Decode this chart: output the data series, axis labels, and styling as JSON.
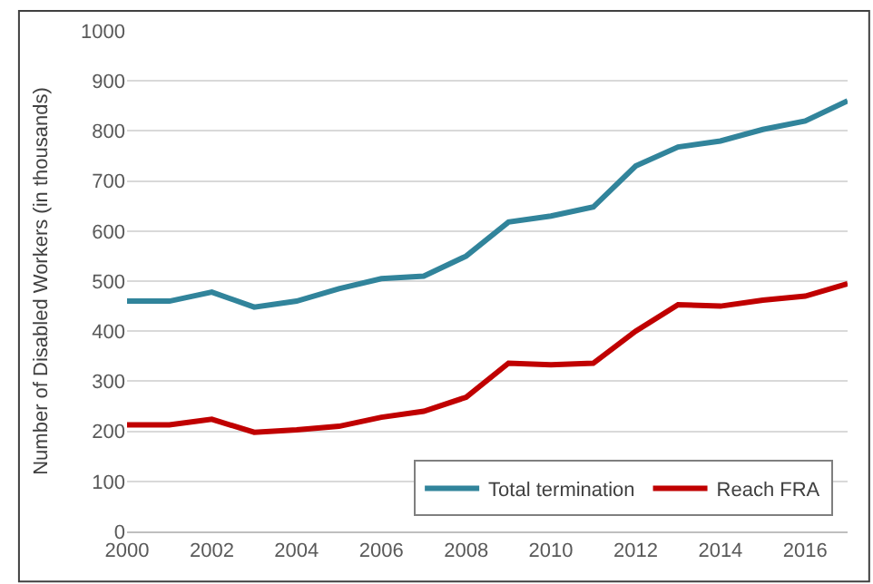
{
  "chart_data": {
    "type": "line",
    "ylabel": "Number of Disabled Workers (in thousands)",
    "x": [
      2000,
      2001,
      2002,
      2003,
      2004,
      2005,
      2006,
      2007,
      2008,
      2009,
      2010,
      2011,
      2012,
      2013,
      2014,
      2015,
      2016,
      2017
    ],
    "series": [
      {
        "name": "Total termination",
        "color": "#31849b",
        "values": [
          460,
          460,
          478,
          448,
          460,
          485,
          505,
          510,
          550,
          618,
          630,
          648,
          730,
          768,
          780,
          803,
          820,
          860
        ]
      },
      {
        "name": "Reach FRA",
        "color": "#c00000",
        "values": [
          213,
          213,
          224,
          198,
          203,
          210,
          228,
          240,
          268,
          336,
          333,
          336,
          400,
          453,
          450,
          462,
          470,
          495
        ]
      }
    ],
    "xlim": [
      2000,
      2017
    ],
    "xticks": [
      2000,
      2002,
      2004,
      2006,
      2008,
      2010,
      2012,
      2014,
      2016
    ],
    "ylim": [
      0,
      1000
    ],
    "yticks": [
      0,
      100,
      200,
      300,
      400,
      500,
      600,
      700,
      800,
      900,
      1000
    ],
    "grid": "y",
    "legend": "bottom right",
    "marker": "none",
    "line_style": "solid"
  }
}
